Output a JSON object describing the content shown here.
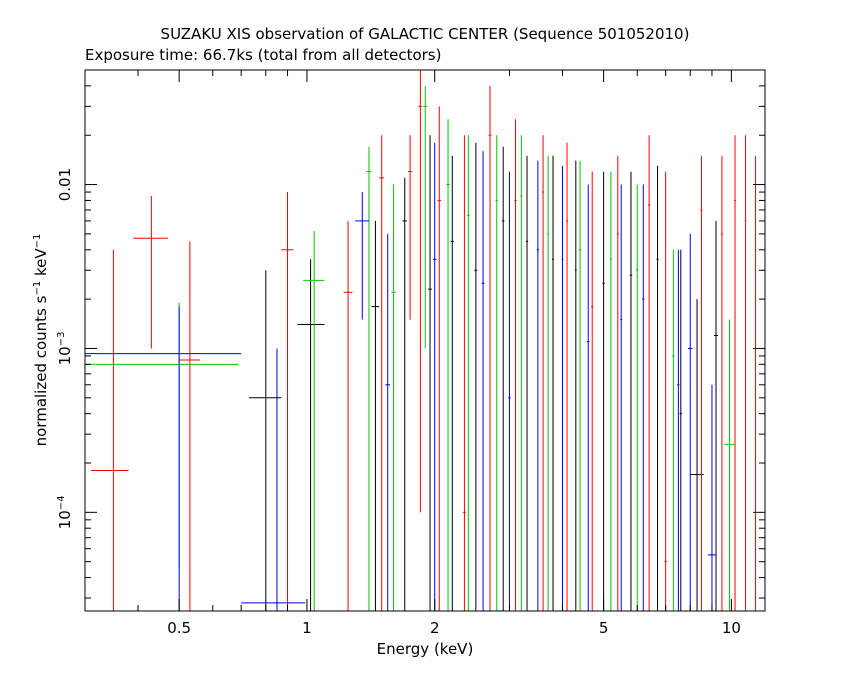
{
  "chart_data": {
    "type": "scatter",
    "title": "SUZAKU XIS observation of GALACTIC CENTER (Sequence 501052010)",
    "subtitle": "Exposure time: 66.7ks (total from all detectors)",
    "xlabel": "Energy (keV)",
    "ylabel": "normalized counts s",
    "ylabel_sup1": "−1",
    "ylabel_mid": " keV",
    "ylabel_sup2": "−1",
    "x_scale": "log",
    "y_scale": "log",
    "xlim": [
      0.3,
      12
    ],
    "ylim": [
      2.5e-05,
      0.05
    ],
    "x_ticks": [
      {
        "value": 0.5,
        "label": "0.5"
      },
      {
        "value": 1,
        "label": "1"
      },
      {
        "value": 2,
        "label": "2"
      },
      {
        "value": 5,
        "label": "5"
      },
      {
        "value": 10,
        "label": "10"
      }
    ],
    "y_ticks": [
      {
        "value": 0.01,
        "label": "0.01",
        "sup": ""
      },
      {
        "value": 0.001,
        "label": "10",
        "sup": "−3"
      },
      {
        "value": 0.0001,
        "label": "10",
        "sup": "−4"
      }
    ],
    "colors": {
      "XIS0": "#000000",
      "XIS1": "#ff0000",
      "XIS2": "#00c800",
      "XIS3": "#0000ff"
    },
    "series": [
      {
        "color": "#000000",
        "points": [
          {
            "x": 0.8,
            "xerr": [
              0.73,
              0.87
            ],
            "y": 0.0005,
            "yerr": [
              2.5e-05,
              0.003
            ]
          },
          {
            "x": 1.02,
            "xerr": [
              0.95,
              1.1
            ],
            "y": 0.0014,
            "yerr": [
              2.5e-05,
              0.0035
            ]
          },
          {
            "x": 1.45,
            "xerr": [
              1.42,
              1.48
            ],
            "y": 0.0018,
            "yerr": [
              2.5e-05,
              0.006
            ]
          },
          {
            "x": 1.7,
            "xerr": [
              1.68,
              1.72
            ],
            "y": 0.006,
            "yerr": [
              2.5e-05,
              0.011
            ]
          },
          {
            "x": 1.95,
            "xerr": [
              1.93,
              1.97
            ],
            "y": 0.0023,
            "yerr": [
              2.5e-05,
              0.02
            ]
          },
          {
            "x": 2.2,
            "xerr": [
              2.18,
              2.22
            ],
            "y": 0.0045,
            "yerr": [
              2.5e-05,
              0.015
            ]
          },
          {
            "x": 2.5,
            "xerr": [
              2.48,
              2.52
            ],
            "y": 0.003,
            "yerr": [
              2.5e-05,
              0.018
            ]
          },
          {
            "x": 2.9,
            "xerr": [
              2.88,
              2.92
            ],
            "y": 0.006,
            "yerr": [
              2.5e-05,
              0.017
            ]
          },
          {
            "x": 3.3,
            "xerr": [
              3.28,
              3.32
            ],
            "y": 0.0045,
            "yerr": [
              2.5e-05,
              0.015
            ]
          },
          {
            "x": 3.8,
            "xerr": [
              3.78,
              3.82
            ],
            "y": 0.0035,
            "yerr": [
              2.5e-05,
              0.015
            ]
          },
          {
            "x": 4.3,
            "xerr": [
              4.28,
              4.32
            ],
            "y": 0.003,
            "yerr": [
              2.5e-05,
              0.014
            ]
          },
          {
            "x": 5.0,
            "xerr": [
              4.97,
              5.03
            ],
            "y": 0.0025,
            "yerr": [
              2.5e-05,
              0.012
            ]
          },
          {
            "x": 5.8,
            "xerr": [
              5.76,
              5.84
            ],
            "y": 0.0028,
            "yerr": [
              2.5e-05,
              0.012
            ]
          },
          {
            "x": 6.7,
            "xerr": [
              6.66,
              6.74
            ],
            "y": 0.0035,
            "yerr": [
              2.5e-05,
              0.013
            ]
          },
          {
            "x": 7.6,
            "xerr": [
              7.55,
              7.65
            ],
            "y": 0.0004,
            "yerr": [
              2.5e-05,
              0.004
            ]
          },
          {
            "x": 8.3,
            "xerr": [
              8.0,
              8.6
            ],
            "y": 0.00017,
            "yerr": [
              2.5e-05,
              0.002
            ]
          },
          {
            "x": 9.2,
            "xerr": [
              9.1,
              9.3
            ],
            "y": 0.0012,
            "yerr": [
              2.5e-05,
              0.006
            ]
          }
        ]
      },
      {
        "color": "#ff0000",
        "points": [
          {
            "x": 0.35,
            "xerr": [
              0.31,
              0.38
            ],
            "y": 0.00018,
            "yerr": [
              2.5e-05,
              0.004
            ]
          },
          {
            "x": 0.43,
            "xerr": [
              0.39,
              0.47
            ],
            "y": 0.0047,
            "yerr": [
              0.001,
              0.0085
            ]
          },
          {
            "x": 0.53,
            "xerr": [
              0.5,
              0.56
            ],
            "y": 0.00085,
            "yerr": [
              2.5e-05,
              0.0045
            ]
          },
          {
            "x": 0.9,
            "xerr": [
              0.87,
              0.93
            ],
            "y": 0.004,
            "yerr": [
              2.5e-05,
              0.009
            ]
          },
          {
            "x": 1.25,
            "xerr": [
              1.22,
              1.28
            ],
            "y": 0.0022,
            "yerr": [
              2.5e-05,
              0.006
            ]
          },
          {
            "x": 1.5,
            "xerr": [
              1.48,
              1.52
            ],
            "y": 0.011,
            "yerr": [
              2.5e-05,
              0.02
            ]
          },
          {
            "x": 1.75,
            "xerr": [
              1.73,
              1.77
            ],
            "y": 0.012,
            "yerr": [
              0.0015,
              0.02
            ]
          },
          {
            "x": 1.85,
            "xerr": [
              1.83,
              1.87
            ],
            "y": 0.03,
            "yerr": [
              0.0001,
              0.05
            ]
          },
          {
            "x": 2.05,
            "xerr": [
              2.03,
              2.07
            ],
            "y": 0.008,
            "yerr": [
              2.5e-05,
              0.03
            ]
          },
          {
            "x": 2.35,
            "xerr": [
              2.33,
              2.37
            ],
            "y": 0.0001,
            "yerr": [
              2.5e-05,
              0.02
            ]
          },
          {
            "x": 2.7,
            "xerr": [
              2.68,
              2.72
            ],
            "y": 0.02,
            "yerr": [
              2.5e-05,
              0.04
            ]
          },
          {
            "x": 3.1,
            "xerr": [
              3.08,
              3.12
            ],
            "y": 0.008,
            "yerr": [
              2.5e-05,
              0.025
            ]
          },
          {
            "x": 3.6,
            "xerr": [
              3.58,
              3.62
            ],
            "y": 0.009,
            "yerr": [
              2.5e-05,
              0.02
            ]
          },
          {
            "x": 4.1,
            "xerr": [
              4.08,
              4.12
            ],
            "y": 0.006,
            "yerr": [
              2.5e-05,
              0.018
            ]
          },
          {
            "x": 4.7,
            "xerr": [
              4.67,
              4.73
            ],
            "y": 0.0018,
            "yerr": [
              2.5e-05,
              0.012
            ]
          },
          {
            "x": 5.4,
            "xerr": [
              5.37,
              5.43
            ],
            "y": 0.005,
            "yerr": [
              2.5e-05,
              0.015
            ]
          },
          {
            "x": 6.4,
            "xerr": [
              6.36,
              6.44
            ],
            "y": 0.0075,
            "yerr": [
              2.5e-05,
              0.02
            ]
          },
          {
            "x": 7.0,
            "xerr": [
              6.95,
              7.05
            ],
            "y": 5e-05,
            "yerr": [
              2.5e-05,
              0.012
            ]
          },
          {
            "x": 8.5,
            "xerr": [
              8.45,
              8.55
            ],
            "y": 0.007,
            "yerr": [
              2.5e-05,
              0.015
            ]
          },
          {
            "x": 9.5,
            "xerr": [
              9.45,
              9.55
            ],
            "y": 0.005,
            "yerr": [
              2.5e-05,
              0.015
            ]
          },
          {
            "x": 10.2,
            "xerr": [
              10.15,
              10.25
            ],
            "y": 0.008,
            "yerr": [
              2.5e-05,
              0.02
            ]
          },
          {
            "x": 10.8,
            "xerr": [
              10.75,
              10.85
            ],
            "y": 0.006,
            "yerr": [
              2.5e-05,
              0.02
            ]
          },
          {
            "x": 11.4,
            "xerr": [
              11.35,
              11.45
            ],
            "y": 0.004,
            "yerr": [
              2.5e-05,
              0.015
            ]
          }
        ]
      },
      {
        "color": "#00c800",
        "points": [
          {
            "x": 0.5,
            "xerr": [
              0.3,
              0.69
            ],
            "y": 0.0008,
            "yerr": [
              4.5e-05,
              0.0019
            ]
          },
          {
            "x": 1.04,
            "xerr": [
              0.98,
              1.1
            ],
            "y": 0.0026,
            "yerr": [
              2.5e-05,
              0.0052
            ]
          },
          {
            "x": 1.4,
            "xerr": [
              1.38,
              1.42
            ],
            "y": 0.012,
            "yerr": [
              2.5e-05,
              0.017
            ]
          },
          {
            "x": 1.6,
            "xerr": [
              1.58,
              1.62
            ],
            "y": 0.0022,
            "yerr": [
              2.5e-05,
              0.01
            ]
          },
          {
            "x": 1.9,
            "xerr": [
              1.88,
              1.92
            ],
            "y": 0.03,
            "yerr": [
              0.001,
              0.04
            ]
          },
          {
            "x": 2.15,
            "xerr": [
              2.13,
              2.17
            ],
            "y": 0.01,
            "yerr": [
              2.5e-05,
              0.025
            ]
          },
          {
            "x": 2.4,
            "xerr": [
              2.38,
              2.42
            ],
            "y": 0.0065,
            "yerr": [
              2.5e-05,
              0.02
            ]
          },
          {
            "x": 2.8,
            "xerr": [
              2.78,
              2.82
            ],
            "y": 0.008,
            "yerr": [
              2.5e-05,
              0.02
            ]
          },
          {
            "x": 3.2,
            "xerr": [
              3.18,
              3.22
            ],
            "y": 0.0085,
            "yerr": [
              2.5e-05,
              0.02
            ]
          },
          {
            "x": 3.7,
            "xerr": [
              3.68,
              3.72
            ],
            "y": 0.005,
            "yerr": [
              2.5e-05,
              0.015
            ]
          },
          {
            "x": 4.4,
            "xerr": [
              4.37,
              4.43
            ],
            "y": 0.004,
            "yerr": [
              2.5e-05,
              0.014
            ]
          },
          {
            "x": 5.2,
            "xerr": [
              5.17,
              5.23
            ],
            "y": 0.0035,
            "yerr": [
              2.5e-05,
              0.012
            ]
          },
          {
            "x": 6.0,
            "xerr": [
              5.96,
              6.04
            ],
            "y": 0.003,
            "yerr": [
              2.5e-05,
              0.01
            ]
          },
          {
            "x": 7.3,
            "xerr": [
              7.25,
              7.35
            ],
            "y": 0.0009,
            "yerr": [
              2.5e-05,
              0.004
            ]
          },
          {
            "x": 9.9,
            "xerr": [
              9.6,
              10.2
            ],
            "y": 0.00026,
            "yerr": [
              2.5e-05,
              0.0015
            ]
          }
        ]
      },
      {
        "color": "#0000ff",
        "points": [
          {
            "x": 0.5,
            "xerr": [
              0.3,
              0.7
            ],
            "y": 0.00093,
            "yerr": [
              2.5e-05,
              0.0018
            ]
          },
          {
            "x": 0.85,
            "xerr": [
              0.7,
              0.99
            ],
            "y": 2.8e-05,
            "yerr": [
              2.5e-05,
              0.001
            ]
          },
          {
            "x": 1.35,
            "xerr": [
              1.3,
              1.4
            ],
            "y": 0.006,
            "yerr": [
              0.0015,
              0.009
            ]
          },
          {
            "x": 1.55,
            "xerr": [
              1.53,
              1.57
            ],
            "y": 0.0006,
            "yerr": [
              2.5e-05,
              0.005
            ]
          },
          {
            "x": 2.0,
            "xerr": [
              1.98,
              2.02
            ],
            "y": 0.0035,
            "yerr": [
              2.5e-05,
              0.018
            ]
          },
          {
            "x": 2.6,
            "xerr": [
              2.58,
              2.62
            ],
            "y": 0.0025,
            "yerr": [
              2.5e-05,
              0.016
            ]
          },
          {
            "x": 3.0,
            "xerr": [
              2.98,
              3.02
            ],
            "y": 0.0005,
            "yerr": [
              2.5e-05,
              0.012
            ]
          },
          {
            "x": 3.5,
            "xerr": [
              3.48,
              3.52
            ],
            "y": 0.004,
            "yerr": [
              2.5e-05,
              0.014
            ]
          },
          {
            "x": 4.0,
            "xerr": [
              3.98,
              4.02
            ],
            "y": 0.0035,
            "yerr": [
              2.5e-05,
              0.013
            ]
          },
          {
            "x": 4.6,
            "xerr": [
              4.57,
              4.63
            ],
            "y": 0.0011,
            "yerr": [
              2.5e-05,
              0.01
            ]
          },
          {
            "x": 5.5,
            "xerr": [
              5.47,
              5.53
            ],
            "y": 0.0015,
            "yerr": [
              2.5e-05,
              0.01
            ]
          },
          {
            "x": 6.2,
            "xerr": [
              6.16,
              6.24
            ],
            "y": 0.002,
            "yerr": [
              2.5e-05,
              0.01
            ]
          },
          {
            "x": 7.5,
            "xerr": [
              7.45,
              7.55
            ],
            "y": 0.0006,
            "yerr": [
              2.5e-05,
              0.004
            ]
          },
          {
            "x": 8.0,
            "xerr": [
              7.9,
              8.1
            ],
            "y": 0.001,
            "yerr": [
              2.5e-05,
              0.005
            ]
          },
          {
            "x": 9.0,
            "xerr": [
              8.8,
              9.2
            ],
            "y": 5.5e-05,
            "yerr": [
              2.5e-05,
              0.0006
            ]
          }
        ]
      }
    ]
  }
}
